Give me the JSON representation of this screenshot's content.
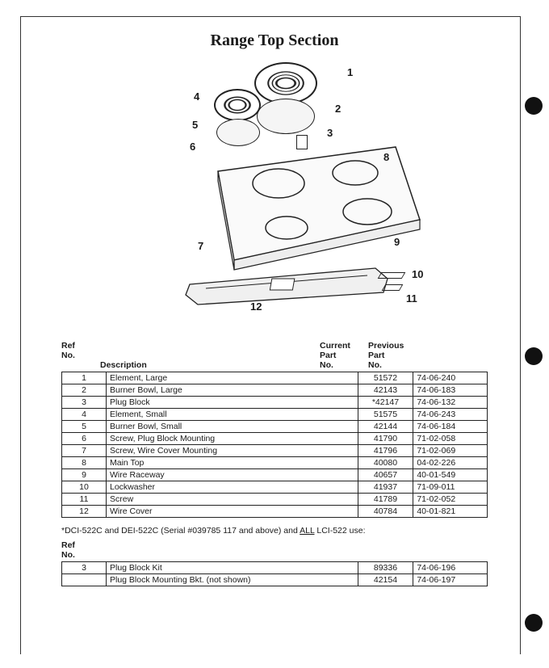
{
  "title": "Range Top Section",
  "diagram": {
    "callouts": [
      "1",
      "2",
      "3",
      "4",
      "5",
      "6",
      "7",
      "8",
      "9",
      "10",
      "11",
      "12"
    ]
  },
  "headers": {
    "ref": "Ref\nNo.",
    "desc": "Description",
    "current": "Current\nPart\nNo.",
    "previous": "Previous\nPart\nNo."
  },
  "rows": [
    {
      "ref": "1",
      "desc": "Element, Large",
      "cur": "51572",
      "prev": "74-06-240"
    },
    {
      "ref": "2",
      "desc": "Burner Bowl, Large",
      "cur": "42143",
      "prev": "74-06-183"
    },
    {
      "ref": "3",
      "desc": "Plug Block",
      "cur": "*42147",
      "prev": "74-06-132"
    },
    {
      "ref": "4",
      "desc": "Element, Small",
      "cur": "51575",
      "prev": "74-06-243"
    },
    {
      "ref": "5",
      "desc": "Burner Bowl, Small",
      "cur": "42144",
      "prev": "74-06-184"
    },
    {
      "ref": "6",
      "desc": "Screw, Plug Block Mounting",
      "cur": "41790",
      "prev": "71-02-058"
    },
    {
      "ref": "7",
      "desc": "Screw, Wire Cover Mounting",
      "cur": "41796",
      "prev": "71-02-069"
    },
    {
      "ref": "8",
      "desc": "Main Top",
      "cur": "40080",
      "prev": "04-02-226"
    },
    {
      "ref": "9",
      "desc": "Wire Raceway",
      "cur": "40657",
      "prev": "40-01-549"
    },
    {
      "ref": "10",
      "desc": "Lockwasher",
      "cur": "41937",
      "prev": "71-09-011"
    },
    {
      "ref": "11",
      "desc": "Screw",
      "cur": "41789",
      "prev": "71-02-052"
    },
    {
      "ref": "12",
      "desc": "Wire Cover",
      "cur": "40784",
      "prev": "40-01-821"
    }
  ],
  "note_prefix": "*DCI-522C and DEI-522C (Serial #039785 117 and above) and ",
  "note_underlined": "ALL",
  "note_suffix": " LCI-522 use:",
  "ref_label": "Ref\nNo.",
  "rows2": [
    {
      "ref": "3",
      "desc": "Plug Block Kit",
      "cur": "89336",
      "prev": "74-06-196"
    },
    {
      "ref": "",
      "desc": "Plug Block Mounting Bkt. (not shown)",
      "cur": "42154",
      "prev": "74-06-197"
    }
  ]
}
